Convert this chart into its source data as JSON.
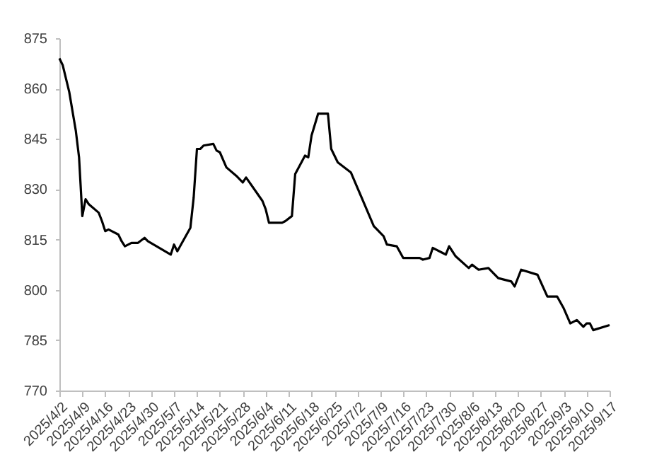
{
  "chart_data": {
    "type": "line",
    "x": [
      "2025-04-02",
      "2025-04-03",
      "2025-04-05",
      "2025-04-07",
      "2025-04-08",
      "2025-04-09",
      "2025-04-10",
      "2025-04-11",
      "2025-04-14",
      "2025-04-15",
      "2025-04-16",
      "2025-04-17",
      "2025-04-20",
      "2025-04-21",
      "2025-04-22",
      "2025-04-24",
      "2025-04-26",
      "2025-04-28",
      "2025-04-29",
      "2025-05-06",
      "2025-05-07",
      "2025-05-08",
      "2025-05-12",
      "2025-05-13",
      "2025-05-14",
      "2025-05-15",
      "2025-05-16",
      "2025-05-19",
      "2025-05-20",
      "2025-05-21",
      "2025-05-23",
      "2025-05-26",
      "2025-05-28",
      "2025-05-29",
      "2025-06-03",
      "2025-06-04",
      "2025-06-05",
      "2025-06-09",
      "2025-06-10",
      "2025-06-12",
      "2025-06-13",
      "2025-06-16",
      "2025-06-17",
      "2025-06-18",
      "2025-06-20",
      "2025-06-23",
      "2025-06-24",
      "2025-06-26",
      "2025-06-30",
      "2025-07-07",
      "2025-07-10",
      "2025-07-11",
      "2025-07-14",
      "2025-07-16",
      "2025-07-21",
      "2025-07-22",
      "2025-07-24",
      "2025-07-25",
      "2025-07-28",
      "2025-07-29",
      "2025-07-30",
      "2025-08-01",
      "2025-08-05",
      "2025-08-06",
      "2025-08-08",
      "2025-08-11",
      "2025-08-14",
      "2025-08-18",
      "2025-08-19",
      "2025-08-21",
      "2025-08-26",
      "2025-08-29",
      "2025-09-01",
      "2025-09-03",
      "2025-09-05",
      "2025-09-07",
      "2025-09-09",
      "2025-09-10",
      "2025-09-11",
      "2025-09-12",
      "2025-09-17"
    ],
    "series": [
      {
        "color": "#000000",
        "values": [
          869,
          867,
          859,
          847.5,
          839.5,
          822,
          827,
          825.5,
          823,
          820.5,
          817.5,
          818,
          816.5,
          814.5,
          813,
          814,
          814,
          815.5,
          814.5,
          810.5,
          813.5,
          811.5,
          818.5,
          827.5,
          842,
          842,
          843,
          843.5,
          841.5,
          841,
          836.5,
          834,
          832,
          833.5,
          826.5,
          824,
          820,
          820,
          820.5,
          822,
          834.5,
          840,
          839.5,
          846,
          852.5,
          852.5,
          842,
          838,
          835,
          819,
          816,
          813.5,
          813,
          809.5,
          809.5,
          809,
          809.5,
          812.5,
          811,
          810.5,
          813,
          810,
          806.5,
          807.5,
          806,
          806.5,
          803.5,
          802.5,
          801,
          806,
          804.5,
          798,
          798,
          794.5,
          790,
          791,
          789,
          790,
          790,
          788,
          789.5
        ]
      }
    ],
    "xlim": [
      "2025-04-02",
      "2025-09-17"
    ],
    "xticks": [
      {
        "value": "2025-04-02",
        "label": "2025/4/2"
      },
      {
        "value": "2025-04-09",
        "label": "2025/4/9"
      },
      {
        "value": "2025-04-16",
        "label": "2025/4/16"
      },
      {
        "value": "2025-04-23",
        "label": "2025/4/23"
      },
      {
        "value": "2025-04-30",
        "label": "2025/4/30"
      },
      {
        "value": "2025-05-07",
        "label": "2025/5/7"
      },
      {
        "value": "2025-05-14",
        "label": "2025/5/14"
      },
      {
        "value": "2025-05-21",
        "label": "2025/5/21"
      },
      {
        "value": "2025-05-28",
        "label": "2025/5/28"
      },
      {
        "value": "2025-06-04",
        "label": "2025/6/4"
      },
      {
        "value": "2025-06-11",
        "label": "2025/6/11"
      },
      {
        "value": "2025-06-18",
        "label": "2025/6/18"
      },
      {
        "value": "2025-06-25",
        "label": "2025/6/25"
      },
      {
        "value": "2025-07-02",
        "label": "2025/7/2"
      },
      {
        "value": "2025-07-09",
        "label": "2025/7/9"
      },
      {
        "value": "2025-07-16",
        "label": "2025/7/16"
      },
      {
        "value": "2025-07-23",
        "label": "2025/7/23"
      },
      {
        "value": "2025-07-30",
        "label": "2025/7/30"
      },
      {
        "value": "2025-08-06",
        "label": "2025/8/6"
      },
      {
        "value": "2025-08-13",
        "label": "2025/8/13"
      },
      {
        "value": "2025-08-20",
        "label": "2025/8/20"
      },
      {
        "value": "2025-08-27",
        "label": "2025/8/27"
      },
      {
        "value": "2025-09-03",
        "label": "2025/9/3"
      },
      {
        "value": "2025-09-10",
        "label": "2025/9/10"
      },
      {
        "value": "2025-09-17",
        "label": "2025/9/17"
      }
    ],
    "ylim": [
      770,
      875
    ],
    "yticks": [
      770,
      785,
      800,
      815,
      830,
      845,
      860,
      875
    ],
    "grid": false,
    "legend": false,
    "marker": "none",
    "line_style": "solid"
  }
}
